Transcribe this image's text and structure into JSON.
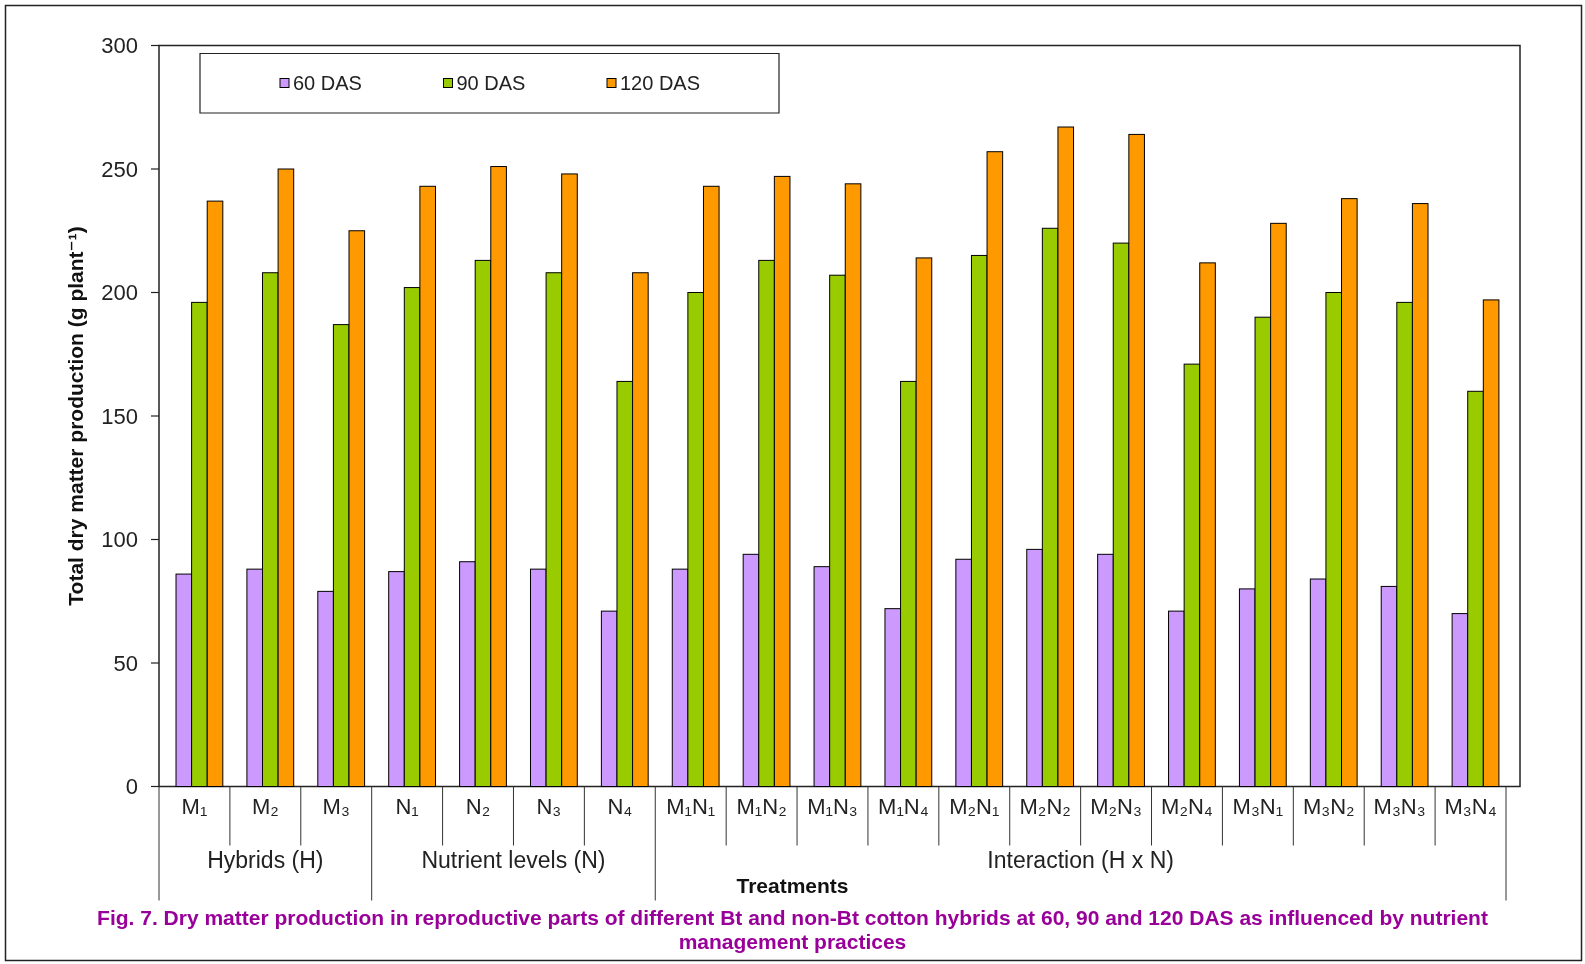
{
  "chart_data": {
    "type": "bar",
    "ylabel": "Total dry matter production (g plant⁻¹)",
    "xlabel": "Treatments",
    "categories": [
      "M₁",
      "M₂",
      "M₃",
      "N₁",
      "N₂",
      "N₃",
      "N₄",
      "M₁N₁",
      "M₁N₂",
      "M₁N₃",
      "M₁N₄",
      "M₂N₁",
      "M₂N₂",
      "M₂N₃",
      "M₂N₄",
      "M₃N₁",
      "M₃N₂",
      "M₃N₃",
      "M₃N₄"
    ],
    "series": [
      {
        "name": "60 DAS",
        "color": "#cc99ff",
        "values": [
          86,
          88,
          79,
          87,
          91,
          88,
          71,
          88,
          94,
          89,
          72,
          92,
          96,
          94,
          71,
          80,
          84,
          81,
          70
        ]
      },
      {
        "name": "90 DAS",
        "color": "#99cc00",
        "values": [
          196,
          208,
          187,
          202,
          213,
          208,
          164,
          200,
          213,
          207,
          164,
          215,
          226,
          220,
          171,
          190,
          200,
          196,
          160
        ]
      },
      {
        "name": "120 DAS",
        "color": "#ff9900",
        "values": [
          237,
          250,
          225,
          243,
          251,
          248,
          208,
          243,
          247,
          244,
          214,
          257,
          267,
          264,
          212,
          228,
          238,
          236,
          197
        ]
      }
    ],
    "ylim": [
      0,
      300
    ],
    "yticks": [
      0,
      50,
      100,
      150,
      200,
      250,
      300
    ],
    "legend": "top left",
    "annotations": [
      "Hybrids (H)",
      "Nutrient levels (N)",
      "Interaction (H x N)",
      "Fig. 7. Dry matter production in reproductive parts of different Bt and non-Bt cotton hybrids at 60, 90 and 120 DAS as influenced by nutrient management practices"
    ]
  }
}
